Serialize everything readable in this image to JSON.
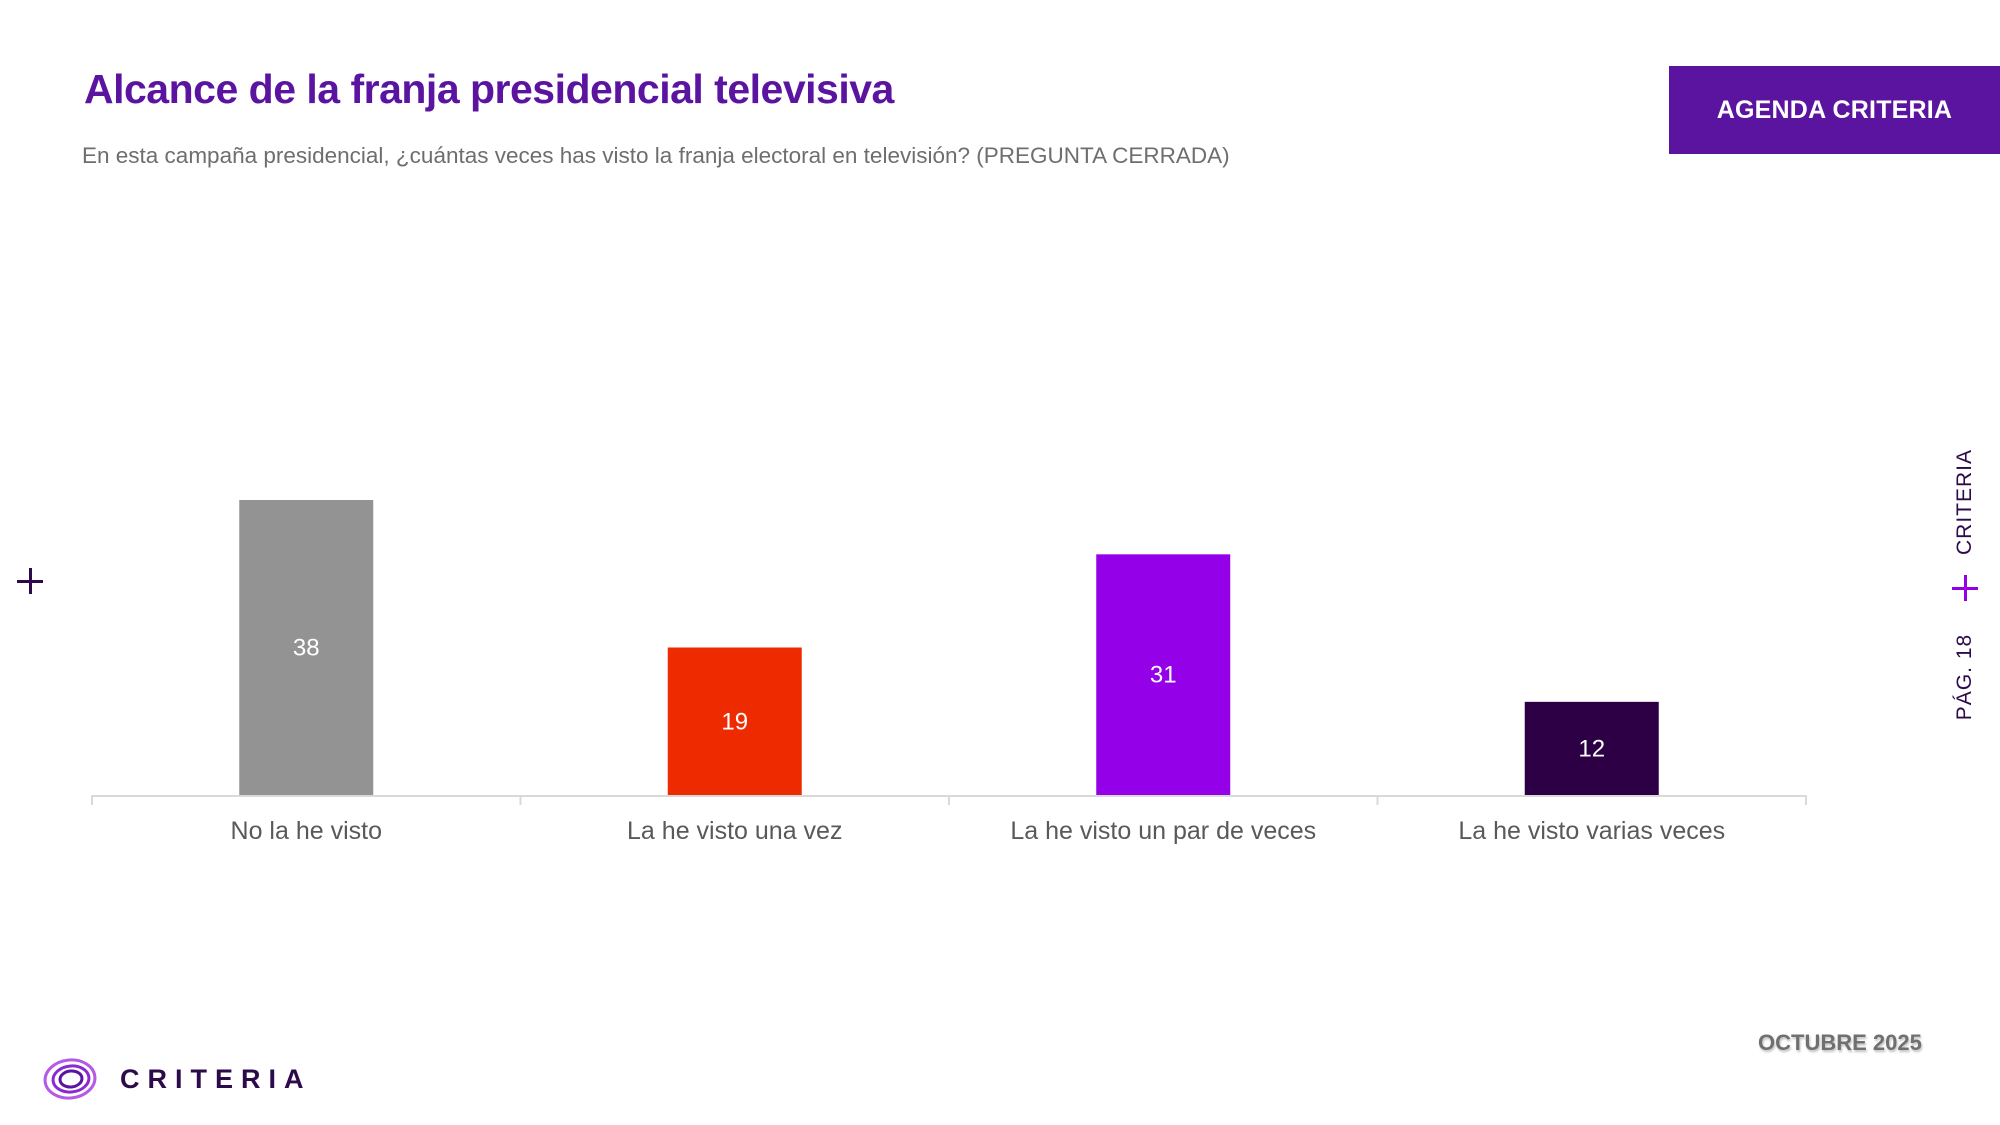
{
  "header": {
    "title": "Alcance de la franja presidencial televisiva",
    "subtitle": "En esta campaña presidencial, ¿cuántas veces has visto la franja electoral en televisión? (PREGUNTA CERRADA)",
    "badge": "AGENDA CRITERIA"
  },
  "side": {
    "brand": "CRITERIA",
    "page": "PÁG. 18"
  },
  "footer": {
    "logo_text": "CRITERIA",
    "date": "OCTUBRE 2025"
  },
  "colors": {
    "brand_purple": "#5a14a0",
    "accent_violet": "#9400e8",
    "dark_purple": "#2d0a4a"
  },
  "chart_data": {
    "type": "bar",
    "title": "Alcance de la franja presidencial televisiva",
    "xlabel": "",
    "ylabel": "",
    "categories": [
      "No la he visto",
      "La he visto una vez",
      "La he visto un par de veces",
      "La he visto varias veces"
    ],
    "values": [
      38,
      19,
      31,
      12
    ],
    "bar_colors": [
      "#939393",
      "#ee2a00",
      "#9400e8",
      "#2d0046"
    ],
    "data_labels": [
      "38",
      "19",
      "31",
      "12"
    ],
    "ylim": [
      0,
      38
    ],
    "grid": false,
    "legend": "none"
  }
}
